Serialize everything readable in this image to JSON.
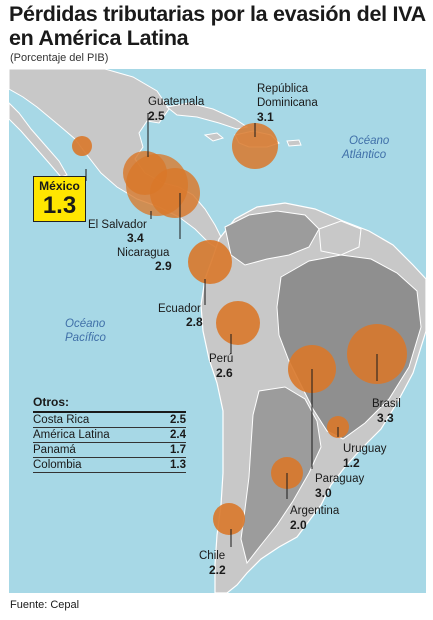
{
  "title": "Pérdidas tributarias por la evasión del IVA en América Latina",
  "subtitle": "(Porcentaje del PIB)",
  "oceans": {
    "atlantic_line1": "Océano",
    "atlantic_line2": "Atlántico",
    "pacific_line1": "Océano",
    "pacific_line2": "Pacífico"
  },
  "colors": {
    "ocean": "#a7d8e6",
    "land": "#c8c8c8",
    "bubble": "#d9782a",
    "highlight": "#ffe600"
  },
  "countries": [
    {
      "name": "Guatemala",
      "value": "2.5"
    },
    {
      "name": "República Dominicana",
      "name_line1": "República",
      "name_line2": "Dominicana",
      "value": "3.1"
    },
    {
      "name": "México",
      "value": "1.3"
    },
    {
      "name": "El Salvador",
      "value": "3.4"
    },
    {
      "name": "Nicaragua",
      "value": "2.9"
    },
    {
      "name": "Ecuador",
      "value": "2.8"
    },
    {
      "name": "Perú",
      "value": "2.6"
    },
    {
      "name": "Brasil",
      "value": "3.3"
    },
    {
      "name": "Uruguay",
      "value": "1.2"
    },
    {
      "name": "Paraguay",
      "value": "3.0"
    },
    {
      "name": "Argentina",
      "value": "2.0"
    },
    {
      "name": "Chile",
      "value": "2.2"
    }
  ],
  "others": {
    "heading": "Otros:",
    "rows": [
      {
        "name": "Costa Rica",
        "value": "2.5"
      },
      {
        "name": "América Latina",
        "value": "2.4"
      },
      {
        "name": "Panamá",
        "value": "1.7"
      },
      {
        "name": "Colombia",
        "value": "1.3"
      }
    ]
  },
  "source": "Fuente: Cepal"
}
